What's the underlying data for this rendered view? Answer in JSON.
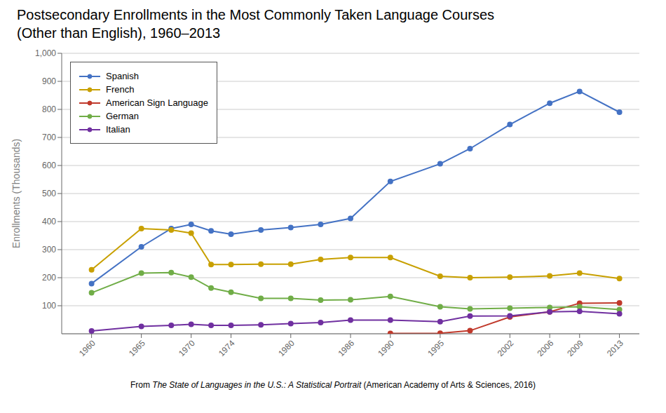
{
  "chart_data": {
    "type": "line",
    "title": "Postsecondary Enrollments in the Most Commonly Taken Language Courses",
    "subtitle": "(Other than English), 1960–2013",
    "y_label": "Enrollments (Thousands)",
    "caption": [
      "From ",
      "The State of Languages in the U.S.: A Statistical Portrait",
      " (American Academy of Arts & Sciences, 2016)"
    ],
    "x": [
      1960,
      1965,
      1968,
      1970,
      1972,
      1974,
      1977,
      1980,
      1983,
      1986,
      1990,
      1995,
      1998,
      2002,
      2006,
      2009,
      2013
    ],
    "series": [
      {
        "name": "Spanish",
        "color": "#4472c4",
        "values": [
          179,
          310,
          375,
          390,
          367,
          355,
          370,
          379,
          390,
          411,
          543,
          606,
          660,
          746,
          822,
          864,
          790
        ]
      },
      {
        "name": "French",
        "color": "#c8a000",
        "values": [
          228,
          375,
          370,
          359,
          247,
          247,
          248,
          248,
          265,
          272,
          272,
          205,
          200,
          202,
          206,
          216,
          197
        ]
      },
      {
        "name": "American Sign Language",
        "color": "#c0392b",
        "values": [
          null,
          null,
          null,
          null,
          null,
          null,
          null,
          null,
          null,
          null,
          1,
          2,
          11,
          60,
          78,
          109,
          110
        ]
      },
      {
        "name": "German",
        "color": "#70ad47",
        "values": [
          146,
          216,
          218,
          202,
          163,
          148,
          126,
          126,
          120,
          121,
          133,
          96,
          89,
          91,
          94,
          96,
          86
        ]
      },
      {
        "name": "Italian",
        "color": "#7030a0",
        "values": [
          10,
          26,
          30,
          34,
          30,
          30,
          32,
          36,
          40,
          49,
          49,
          43,
          63,
          64,
          78,
          80,
          71
        ]
      }
    ],
    "xlim": [
      1957,
      2015
    ],
    "xticks": [
      1960,
      1965,
      1970,
      1974,
      1980,
      1986,
      1990,
      1995,
      2002,
      2006,
      2009,
      2013
    ],
    "ylim": [
      0,
      1000
    ],
    "yticks": [
      100,
      200,
      300,
      400,
      500,
      600,
      700,
      800,
      900,
      {
        "value": 1000,
        "label": "1,000"
      }
    ],
    "grid": true,
    "legend": "upper left",
    "marker": "o",
    "line_style": "solid"
  }
}
